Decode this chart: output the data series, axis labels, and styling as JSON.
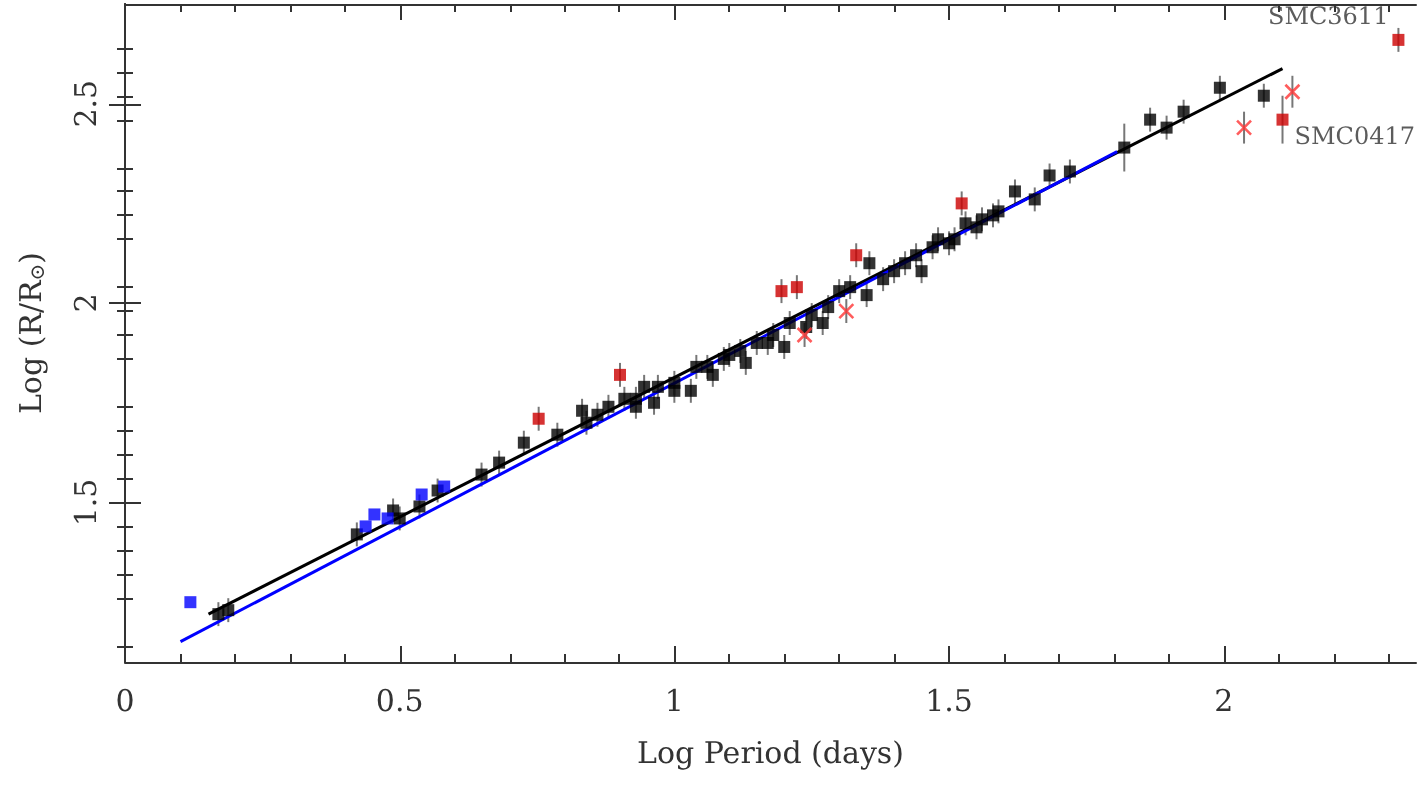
{
  "chart_data": {
    "type": "scatter",
    "xlabel": "Log Period (days)",
    "ylabel": "Log (R/R$_{⊙}$)",
    "xlim": [
      0,
      2.35
    ],
    "xticks": [
      0,
      0.5,
      1,
      1.5,
      2
    ],
    "ylim": [
      1.1,
      2.75
    ],
    "yticks": [
      1.5,
      2,
      2.5
    ],
    "series": [
      {
        "type": "line",
        "color": "#000000",
        "marker": "none",
        "line_style": "solid",
        "x": [
          0.152,
          2.107
        ],
        "values": [
          1.22,
          2.588
        ]
      },
      {
        "type": "line",
        "color": "#0000ff",
        "marker": "none",
        "line_style": "solid",
        "x": [
          0.101,
          1.806
        ],
        "values": [
          1.151,
          2.38
        ]
      },
      {
        "color": "#000000",
        "marker": "square",
        "x": [
          0.17,
          0.188,
          0.422,
          0.46,
          0.488,
          0.5,
          0.536,
          0.569,
          0.649,
          0.681,
          0.787,
          0.832,
          0.86,
          0.873,
          0.909,
          0.93,
          0.945,
          0.963,
          1.0,
          1.04,
          1.07,
          1.1,
          1.13,
          1.17,
          1.2,
          1.24,
          1.27,
          1.32,
          1.35,
          1.38,
          1.42,
          1.45,
          1.47,
          1.5,
          1.53,
          1.56,
          1.59,
          1.656,
          1.683,
          1.72,
          1.866,
          1.896,
          1.993,
          2.073
        ],
        "values": [
          1.22,
          1.23,
          1.42,
          null,
          1.48,
          1.46,
          1.49,
          1.53,
          1.57,
          1.6,
          1.67,
          1.73,
          1.72,
          null,
          1.76,
          1.74,
          1.79,
          1.75,
          1.78,
          1.84,
          1.82,
          1.87,
          1.85,
          1.9,
          1.89,
          1.94,
          1.95,
          2.04,
          2.02,
          2.06,
          2.1,
          2.08,
          2.14,
          2.15,
          2.2,
          2.21,
          2.23,
          2.26,
          2.32,
          2.33,
          null,
          2.44,
          2.54,
          2.52
        ],
        "errors": [
          0.03,
          0.03,
          0.03,
          null,
          0.03,
          0.03,
          0.03,
          0.03,
          0.03,
          0.03,
          0.03,
          0.03,
          0.03,
          null,
          0.03,
          0.03,
          0.03,
          0.03,
          0.03,
          0.03,
          0.03,
          0.03,
          0.03,
          0.03,
          0.03,
          0.03,
          0.03,
          0.03,
          0.03,
          0.03,
          0.03,
          0.03,
          0.03,
          0.03,
          0.03,
          0.03,
          0.03,
          0.03,
          0.03,
          0.03,
          null,
          0.03,
          0.03,
          0.03
        ]
      },
      {
        "color": "#000000",
        "marker": "square",
        "x": [
          0.726,
          0.84,
          0.88,
          0.93,
          0.97,
          1.0,
          1.03,
          1.06,
          1.09,
          1.12,
          1.15,
          1.18,
          1.21,
          1.25,
          1.28,
          1.3,
          1.355,
          1.4,
          1.44,
          1.48,
          1.51,
          1.55,
          1.58,
          1.62,
          1.819,
          1.866,
          1.927
        ],
        "values": [
          1.65,
          1.7,
          1.74,
          1.76,
          1.79,
          1.8,
          1.78,
          1.84,
          1.86,
          1.88,
          1.9,
          1.92,
          1.95,
          1.97,
          1.99,
          2.03,
          2.1,
          2.08,
          2.12,
          2.16,
          2.16,
          2.19,
          2.22,
          2.28,
          2.39,
          2.46,
          2.48
        ],
        "errors": [
          0.03,
          0.03,
          0.03,
          0.03,
          0.03,
          0.03,
          0.03,
          0.03,
          0.03,
          0.03,
          0.03,
          0.03,
          0.03,
          0.03,
          0.03,
          0.03,
          0.03,
          0.03,
          0.03,
          0.03,
          0.03,
          0.03,
          0.03,
          0.03,
          0.06,
          0.03,
          0.03
        ]
      },
      {
        "color": "#0000ff",
        "marker": "square",
        "x": [
          0.119,
          0.438,
          0.454,
          0.478,
          0.54,
          0.581
        ],
        "values": [
          1.25,
          1.44,
          1.47,
          1.46,
          1.52,
          1.54
        ]
      },
      {
        "color": "#cc0000",
        "marker": "square",
        "x": [
          0.753,
          0.901,
          1.195,
          1.223,
          1.331,
          1.523,
          2.107,
          2.318
        ],
        "values": [
          1.71,
          1.82,
          2.03,
          2.04,
          2.12,
          2.25,
          2.46,
          2.66
        ],
        "errors": [
          0.03,
          0.03,
          0.03,
          0.03,
          0.03,
          0.03,
          0.06,
          0.03
        ]
      },
      {
        "color": "#ff3333",
        "marker": "cross",
        "x": [
          1.237,
          1.313,
          2.037,
          2.125
        ],
        "values": [
          1.92,
          1.98,
          2.44,
          2.53
        ],
        "errors": [
          0.03,
          0.03,
          0.04,
          0.04
        ]
      }
    ],
    "annotations": [
      {
        "text": "SMC3611",
        "x": 2.318,
        "y": 2.66
      },
      {
        "text": "SMC0417",
        "x": 2.107,
        "y": 2.46
      }
    ]
  }
}
